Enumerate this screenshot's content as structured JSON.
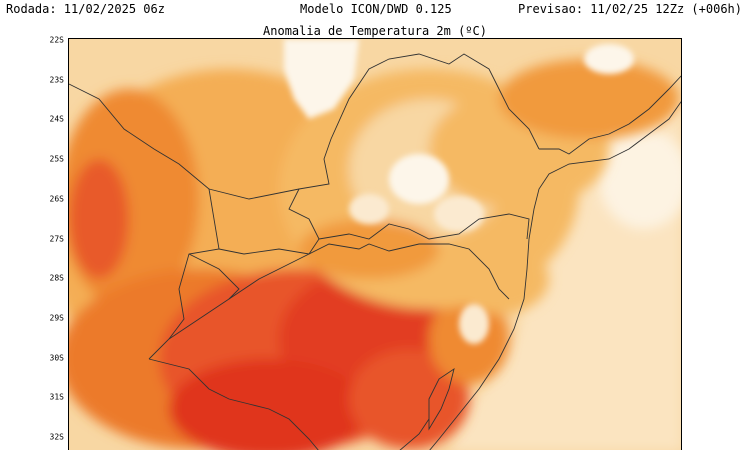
{
  "header": {
    "run": "Rodada: 11/02/2025 06z",
    "model": "Modelo ICON/DWD 0.125",
    "forecast": "Previsao: 11/02/25 12Zz (+006h)"
  },
  "map": {
    "title": "Anomalia de Temperatura 2m (ºC)",
    "lat_labels": [
      "22S",
      "23S",
      "24S",
      "25S",
      "26S",
      "27S",
      "28S",
      "29S",
      "30S",
      "31S",
      "32S"
    ],
    "palette": {
      "ocean": "#fbe3bd",
      "pale": "#f9d8a2",
      "light_orange": "#f5b964",
      "orange": "#f19a3c",
      "dark_orange": "#ec7a2c",
      "red_orange": "#e8552a",
      "red": "#e0341f",
      "white_patch": "#fdf6ea",
      "borders": "#333333"
    }
  }
}
